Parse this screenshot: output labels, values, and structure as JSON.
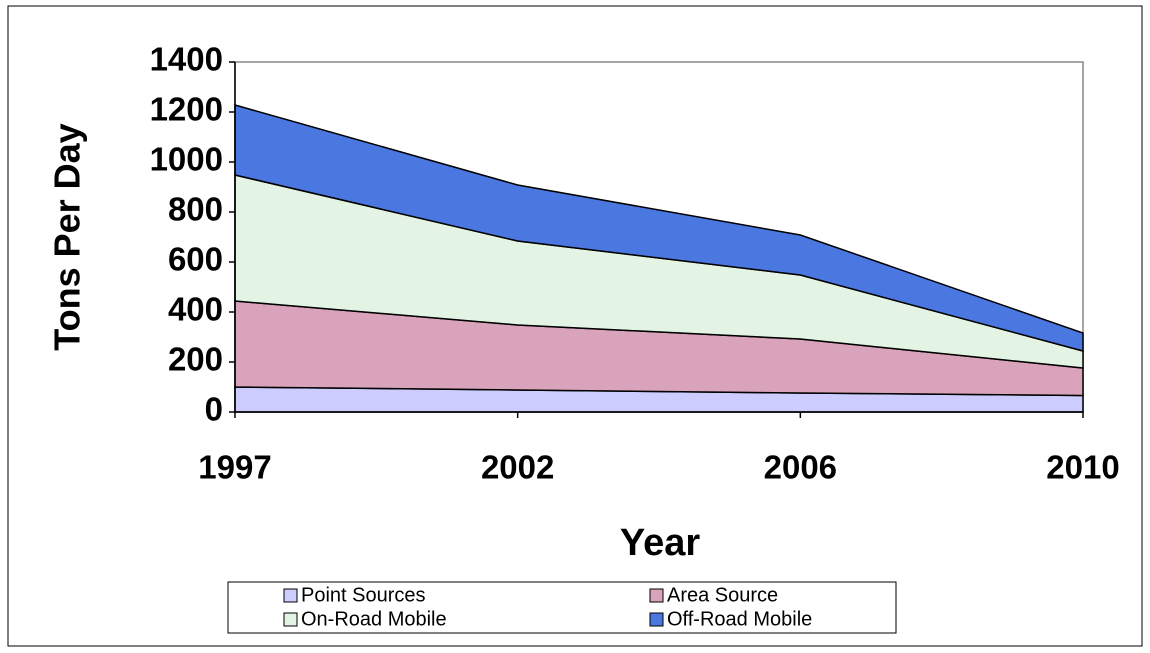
{
  "chart_data": {
    "type": "stacked_area",
    "x_label": "Year",
    "y_label": "Tons Per Day",
    "categories": [
      "1997",
      "2002",
      "2006",
      "2010"
    ],
    "series": [
      {
        "name": "Point Sources",
        "color": "#ccccff",
        "values": [
          100,
          88,
          76,
          66
        ]
      },
      {
        "name": "Area Source",
        "color": "#d9a3bb",
        "values": [
          344,
          260,
          216,
          110
        ]
      },
      {
        "name": "On-Road Mobile",
        "color": "#e4f4e4",
        "values": [
          504,
          336,
          256,
          68
        ]
      },
      {
        "name": "Off-Road Mobile",
        "color": "#4a78e0",
        "values": [
          280,
          224,
          160,
          72
        ]
      }
    ],
    "ylim": [
      0,
      1400
    ],
    "yticks": [
      0,
      200,
      400,
      600,
      800,
      1000,
      1200,
      1400
    ],
    "legend": "bottom"
  }
}
